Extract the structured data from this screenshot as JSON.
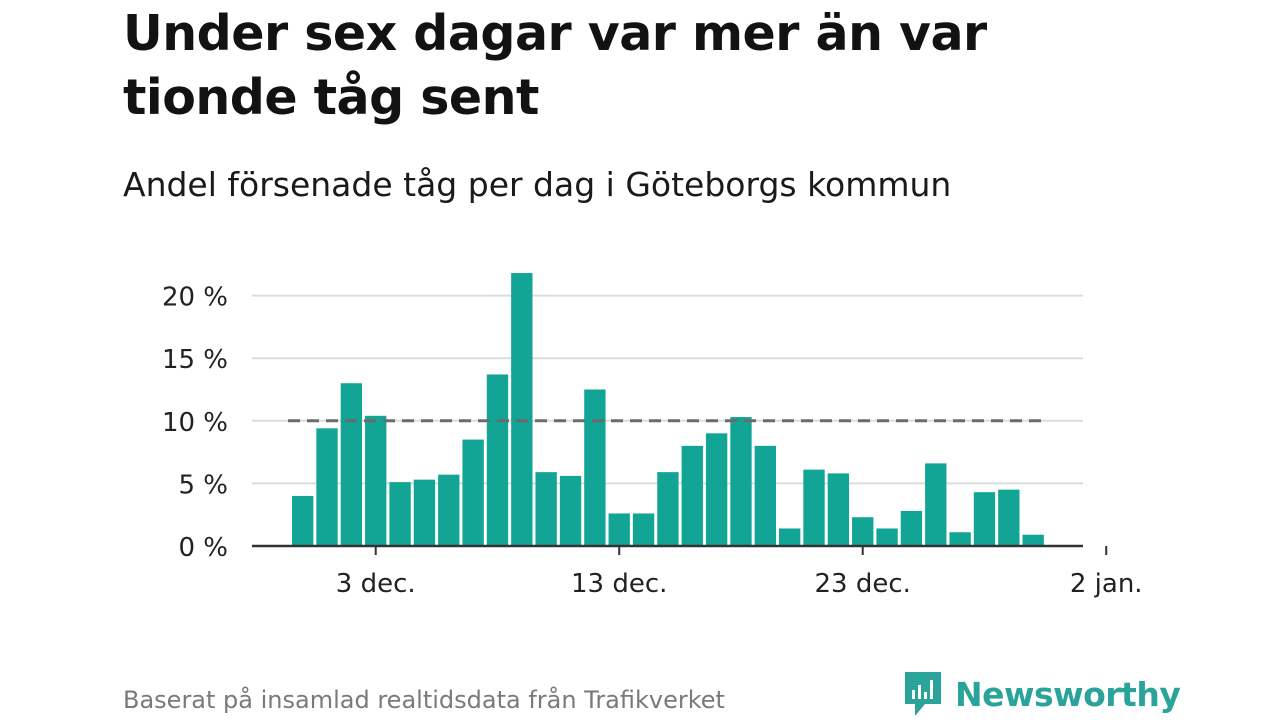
{
  "title": "Under sex dagar var mer än var tionde tåg sent",
  "subtitle": "Andel försenade tåg per dag i Göteborgs kommun",
  "source": "Baserat på insamlad realtidsdata från Trafikverket",
  "brand": {
    "name": "Newsworthy",
    "icon": "newsworthy-logo-icon"
  },
  "colors": {
    "bar": "#12a596",
    "reference_line": "#6b6b6b",
    "grid": "#dcdcdc",
    "axis": "#333333",
    "brand": "#2aa39a"
  },
  "chart_data": {
    "type": "bar",
    "x": [
      "2023-11-30",
      "2023-12-01",
      "2023-12-02",
      "2023-12-03",
      "2023-12-04",
      "2023-12-05",
      "2023-12-06",
      "2023-12-07",
      "2023-12-08",
      "2023-12-09",
      "2023-12-10",
      "2023-12-11",
      "2023-12-12",
      "2023-12-13",
      "2023-12-14",
      "2023-12-15",
      "2023-12-16",
      "2023-12-17",
      "2023-12-18",
      "2023-12-19",
      "2023-12-20",
      "2023-12-21",
      "2023-12-22",
      "2023-12-23",
      "2023-12-24",
      "2023-12-25",
      "2023-12-26",
      "2023-12-27",
      "2023-12-28",
      "2023-12-29",
      "2023-12-30",
      "2023-12-31"
    ],
    "values": [
      4.0,
      9.4,
      13.0,
      10.4,
      5.1,
      5.3,
      5.7,
      8.5,
      13.7,
      21.8,
      5.9,
      5.6,
      12.5,
      2.6,
      2.6,
      5.9,
      8.0,
      9.0,
      10.3,
      8.0,
      1.4,
      6.1,
      5.8,
      2.3,
      1.4,
      2.8,
      6.6,
      1.1,
      4.3,
      4.5,
      0.9,
      0
    ],
    "unit": "%",
    "reference_line": 10,
    "y_ticks": [
      0,
      5,
      10,
      15,
      20
    ],
    "y_tick_labels": [
      "0 %",
      "5 %",
      "10 %",
      "15 %",
      "20 %"
    ],
    "ylim": [
      0,
      22
    ],
    "x_ticks": [
      "2023-12-03",
      "2023-12-13",
      "2023-12-23",
      "2024-01-02"
    ],
    "x_tick_labels": [
      "3 dec.",
      "13 dec.",
      "23 dec.",
      "2 jan."
    ],
    "grid": true,
    "legend": "none"
  }
}
